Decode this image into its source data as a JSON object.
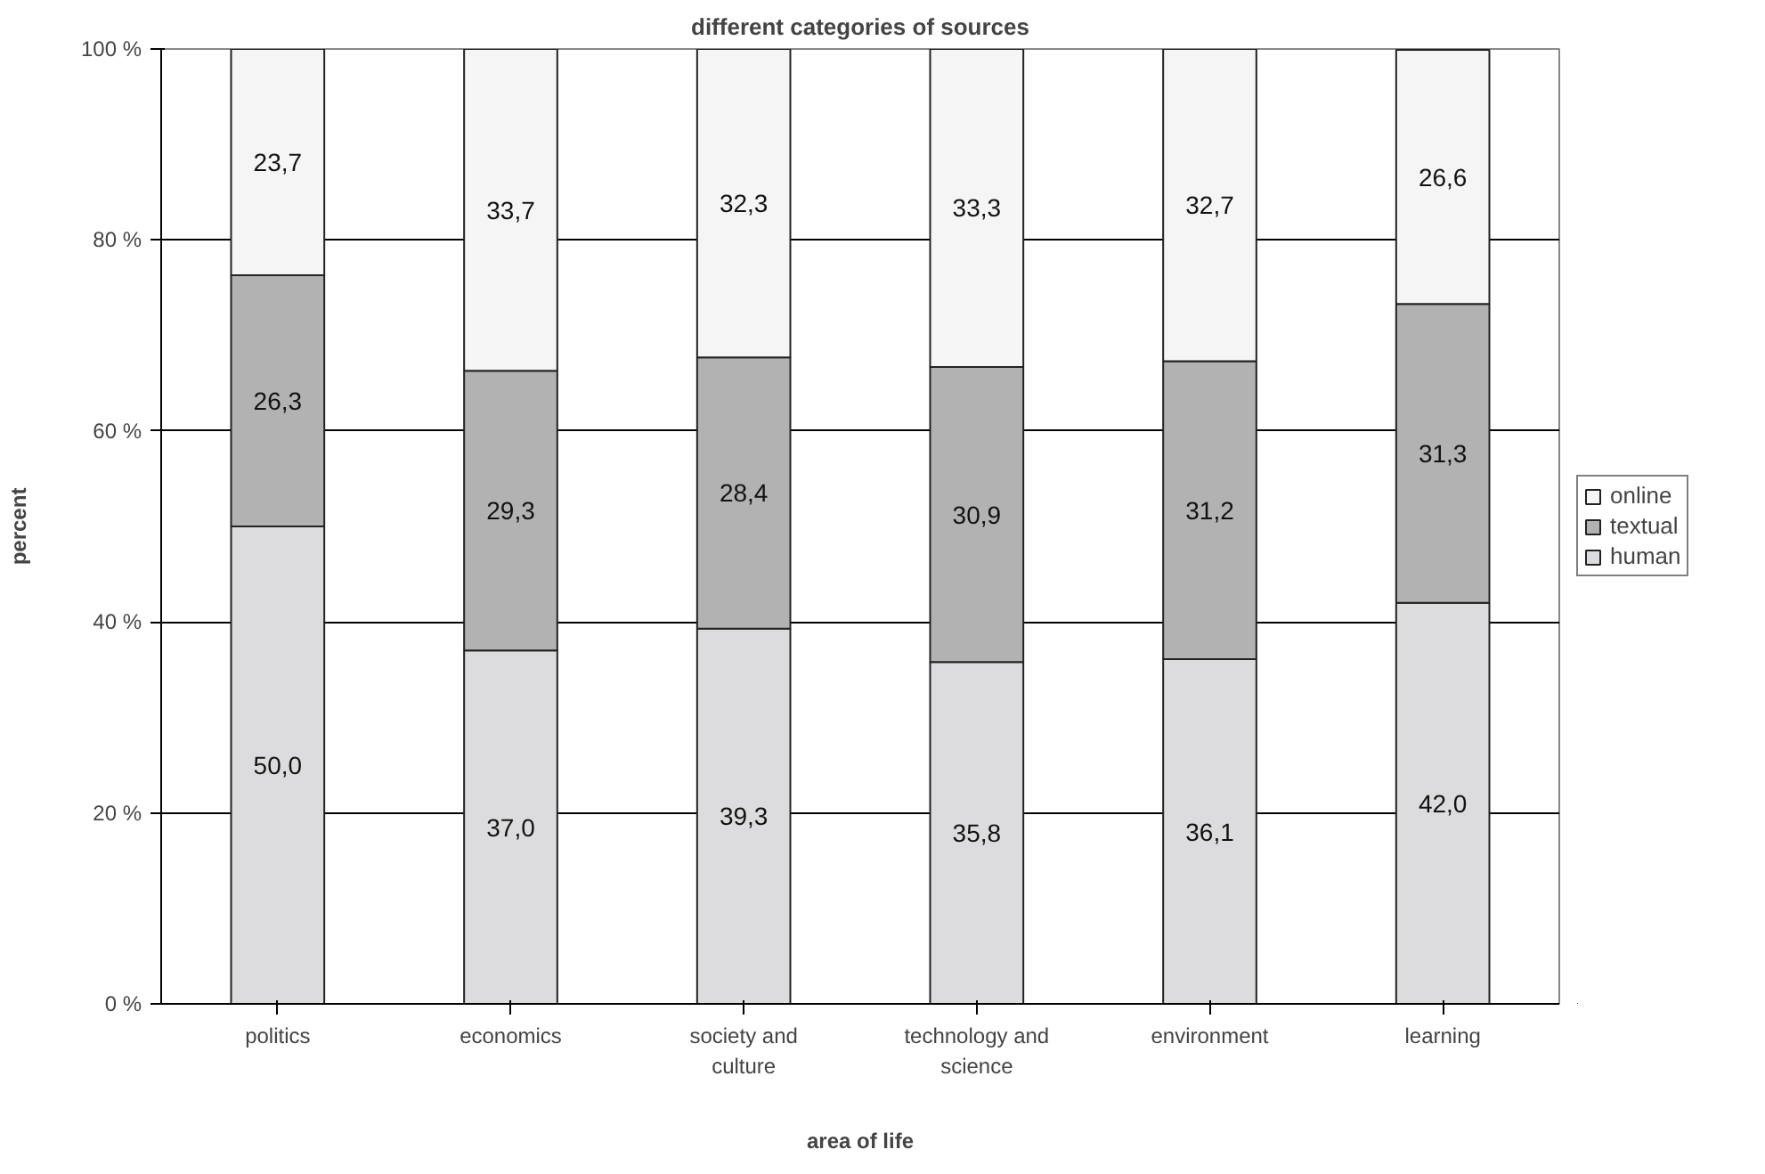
{
  "chart_data": {
    "type": "bar",
    "stacked": true,
    "title": "different categories of sources",
    "xlabel": "area of life",
    "ylabel": "percent",
    "categories": [
      "politics",
      "economics",
      "society and culture",
      "technology and science",
      "environment",
      "learning"
    ],
    "series": [
      {
        "name": "human",
        "color": "#dcdcde",
        "values": [
          50.0,
          37.0,
          39.3,
          35.8,
          36.1,
          42.0
        ],
        "value_labels": [
          "50,0",
          "37,0",
          "39,3",
          "35,8",
          "36,1",
          "42,0"
        ]
      },
      {
        "name": "textual",
        "color": "#b2b2b2",
        "values": [
          26.3,
          29.3,
          28.4,
          30.9,
          31.2,
          31.3
        ],
        "value_labels": [
          "26,3",
          "29,3",
          "28,4",
          "30,9",
          "31,2",
          "31,3"
        ]
      },
      {
        "name": "online",
        "color": "#f5f5f5",
        "values": [
          23.7,
          33.7,
          32.3,
          33.3,
          32.7,
          26.6
        ],
        "value_labels": [
          "23,7",
          "33,7",
          "32,3",
          "33,3",
          "32,7",
          "26,6"
        ]
      }
    ],
    "ylim": [
      0,
      100
    ],
    "yticks": [
      {
        "value": 0,
        "label": "0 %"
      },
      {
        "value": 20,
        "label": "20 %"
      },
      {
        "value": 40,
        "label": "40 %"
      },
      {
        "value": 60,
        "label": "60 %"
      },
      {
        "value": 80,
        "label": "80 %"
      },
      {
        "value": 100,
        "label": "100 %"
      }
    ],
    "grid": "y",
    "legend": "right"
  }
}
